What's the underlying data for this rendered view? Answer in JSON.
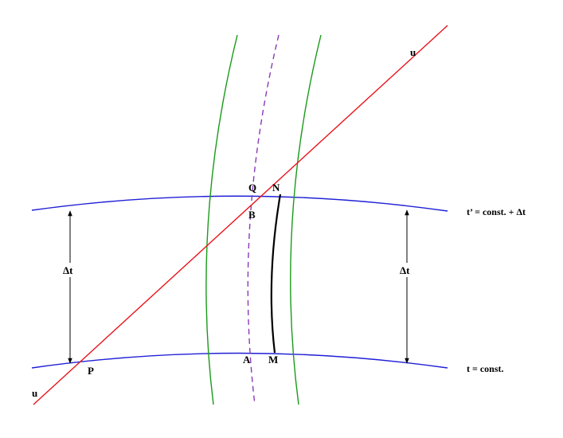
{
  "colors": {
    "worldline_u": "#e8141b",
    "hypersurfaces": "#1f1fd6",
    "tube_boundaries": "#1a9a1a",
    "central_worldline": "#8a3ab9",
    "segment_MN": "#000000",
    "interval_arrows": "#000000"
  },
  "labels": {
    "u_top": "u",
    "u_bottom": "u",
    "point_P": "P",
    "point_Q": "Q",
    "point_N": "N",
    "point_B": "B",
    "point_A": "A",
    "point_M": "M",
    "surface_upper": "t’ = const. + Δt",
    "surface_lower": "t = const.",
    "delta_left": "Δt",
    "delta_right": "Δt"
  }
}
